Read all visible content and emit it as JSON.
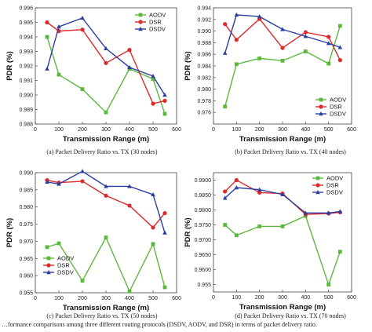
{
  "figure_caption": "…formance comparisons among three different routing protocols (DSDV, AODV, and DSR) in terms of packet delivery ratio.",
  "chart_data": [
    {
      "type": "line",
      "caption": "(a) Packet Delivery Ratio vs. TX (30 nodes)",
      "xlabel": "Transmission Range (m)",
      "ylabel": "PDR (%)",
      "xlim": [
        0,
        600
      ],
      "ylim": [
        0.988,
        0.996
      ],
      "xticks": [
        0,
        100,
        200,
        300,
        400,
        500,
        600
      ],
      "yticks": [
        0.988,
        0.989,
        0.99,
        0.991,
        0.992,
        0.993,
        0.994,
        0.995,
        0.996
      ],
      "ytick_labels": [
        "0.988",
        "0.989",
        "0.990",
        "0.991",
        "0.992",
        "0.993",
        "0.994",
        "0.995",
        "0.996"
      ],
      "legend_position": "top-right",
      "series": [
        {
          "name": "AODV",
          "color": "#5cb83c",
          "marker": "square",
          "x": [
            50,
            100,
            200,
            300,
            400,
            500,
            550
          ],
          "y": [
            0.994,
            0.9914,
            0.9904,
            0.9888,
            0.9918,
            0.9911,
            0.9887
          ]
        },
        {
          "name": "DSR",
          "color": "#dd2a2a",
          "marker": "circle",
          "x": [
            50,
            100,
            200,
            300,
            400,
            500,
            550
          ],
          "y": [
            0.995,
            0.9944,
            0.9945,
            0.9922,
            0.9931,
            0.9894,
            0.9896
          ]
        },
        {
          "name": "DSDV",
          "color": "#2c3fa0",
          "marker": "triangle",
          "x": [
            50,
            100,
            200,
            300,
            400,
            500,
            550
          ],
          "y": [
            0.9918,
            0.9947,
            0.9953,
            0.9932,
            0.9919,
            0.9913,
            0.99
          ]
        }
      ]
    },
    {
      "type": "line",
      "caption": "(b) Packet Delivery Ratio vs. TX (40 nodes)",
      "xlabel": "Transmission Range (m)",
      "ylabel": "PDR (%)",
      "xlim": [
        0,
        600
      ],
      "ylim": [
        0.974,
        0.994
      ],
      "xticks": [
        0,
        100,
        200,
        300,
        400,
        500,
        600
      ],
      "yticks": [
        0.976,
        0.978,
        0.98,
        0.982,
        0.984,
        0.986,
        0.988,
        0.99,
        0.992,
        0.994
      ],
      "ytick_labels": [
        "0.976",
        "0.978",
        "0.980",
        "0.982",
        "0.984",
        "0.986",
        "0.988",
        "0.990",
        "0.992",
        "0.994"
      ],
      "legend_position": "bottom-right",
      "series": [
        {
          "name": "AODV",
          "color": "#5cb83c",
          "marker": "square",
          "x": [
            50,
            100,
            200,
            300,
            400,
            500,
            550
          ],
          "y": [
            0.977,
            0.9843,
            0.9853,
            0.9849,
            0.9865,
            0.9844,
            0.9909
          ]
        },
        {
          "name": "DSR",
          "color": "#dd2a2a",
          "marker": "circle",
          "x": [
            50,
            100,
            200,
            300,
            400,
            500,
            550
          ],
          "y": [
            0.9912,
            0.9885,
            0.9921,
            0.9871,
            0.9898,
            0.989,
            0.985
          ]
        },
        {
          "name": "DSDV",
          "color": "#2c3fa0",
          "marker": "triangle",
          "x": [
            50,
            100,
            200,
            300,
            400,
            500,
            550
          ],
          "y": [
            0.9862,
            0.9928,
            0.9925,
            0.9903,
            0.9891,
            0.9879,
            0.9872
          ]
        }
      ]
    },
    {
      "type": "line",
      "caption": "(c) Packet Delivery Ratio vs. TX (50 nodes)",
      "xlabel": "Transmission Range (m)",
      "ylabel": "PDR (%)",
      "xlim": [
        0,
        600
      ],
      "ylim": [
        0.955,
        0.99
      ],
      "xticks": [
        0,
        100,
        200,
        300,
        400,
        500,
        600
      ],
      "yticks": [
        0.955,
        0.96,
        0.965,
        0.97,
        0.975,
        0.98,
        0.985,
        0.99
      ],
      "ytick_labels": [
        "0.955",
        "0.960",
        "0.965",
        "0.970",
        "0.975",
        "0.980",
        "0.985",
        "0.990"
      ],
      "legend_position": "bottom-left",
      "series": [
        {
          "name": "AODV",
          "color": "#5cb83c",
          "marker": "square",
          "x": [
            50,
            100,
            200,
            300,
            400,
            500,
            550
          ],
          "y": [
            0.9683,
            0.9694,
            0.9585,
            0.9711,
            0.9554,
            0.9692,
            0.9566
          ]
        },
        {
          "name": "DSR",
          "color": "#dd2a2a",
          "marker": "circle",
          "x": [
            50,
            100,
            200,
            300,
            400,
            500,
            550
          ],
          "y": [
            0.9878,
            0.9871,
            0.9875,
            0.9833,
            0.9804,
            0.974,
            0.9782
          ]
        },
        {
          "name": "DSDV",
          "color": "#2c3fa0",
          "marker": "triangle",
          "x": [
            50,
            100,
            200,
            300,
            400,
            500,
            550
          ],
          "y": [
            0.9873,
            0.9867,
            0.9904,
            0.986,
            0.986,
            0.9836,
            0.9725
          ]
        }
      ]
    },
    {
      "type": "line",
      "caption": "(d) Packet Delivery Ratio vs. TX (70 nodes)",
      "xlabel": "Transmission Range (m)",
      "ylabel": "PDR (%)",
      "xlim": [
        0,
        600
      ],
      "ylim": [
        0.9525,
        0.9925
      ],
      "xticks": [
        0,
        100,
        200,
        300,
        400,
        500,
        600
      ],
      "yticks": [
        0.955,
        0.96,
        0.965,
        0.97,
        0.975,
        0.98,
        0.985,
        0.99
      ],
      "ytick_labels": [
        "0.955",
        "0.9600",
        "0.9650",
        "0.9700",
        "0.9750",
        "0.9800",
        "0.9850",
        "0.9900"
      ],
      "legend_position": "top-right",
      "series": [
        {
          "name": "AODV",
          "color": "#5cb83c",
          "marker": "square",
          "x": [
            50,
            100,
            200,
            300,
            400,
            500,
            550
          ],
          "y": [
            0.975,
            0.9715,
            0.9745,
            0.9745,
            0.978,
            0.955,
            0.966
          ]
        },
        {
          "name": "DSR",
          "color": "#dd2a2a",
          "marker": "circle",
          "x": [
            50,
            100,
            200,
            300,
            400,
            500,
            550
          ],
          "y": [
            0.9862,
            0.99,
            0.9858,
            0.9855,
            0.9785,
            0.9788,
            0.9792
          ]
        },
        {
          "name": "DSDV",
          "color": "#2c3fa0",
          "marker": "triangle",
          "x": [
            50,
            100,
            200,
            300,
            400,
            500,
            550
          ],
          "y": [
            0.984,
            0.9875,
            0.9868,
            0.9852,
            0.979,
            0.979,
            0.9795
          ]
        }
      ]
    }
  ]
}
